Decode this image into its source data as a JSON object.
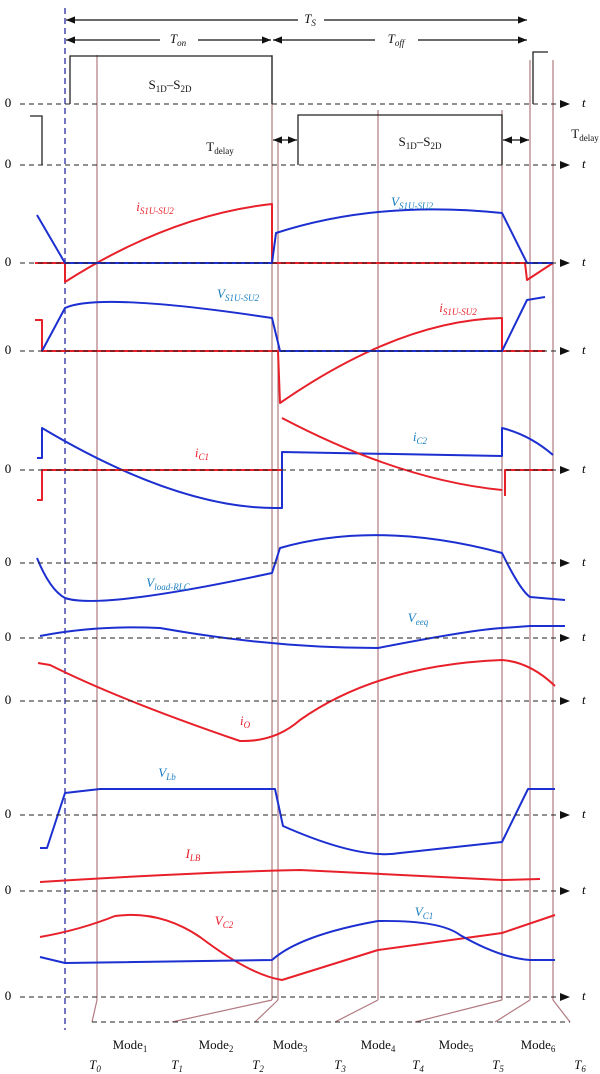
{
  "labels": [
    {
      "parts": [
        [
          "T",
          "S"
        ]
      ]
    },
    {
      "parts": [
        [
          "T",
          "on"
        ]
      ]
    },
    {
      "parts": [
        [
          "T",
          "off"
        ]
      ]
    },
    {
      "parts": [
        [
          "S",
          "1D"
        ],
        [
          "–S",
          "2D"
        ]
      ]
    },
    {
      "parts": [
        [
          "T",
          "delay"
        ]
      ]
    },
    {
      "parts": [
        [
          "S",
          "1D"
        ],
        [
          "–S",
          "2D"
        ]
      ]
    },
    {
      "parts": [
        [
          "T",
          "delay"
        ]
      ]
    },
    {
      "parts": [
        [
          "i",
          "S1U-SU2"
        ]
      ]
    },
    {
      "parts": [
        [
          "V",
          "S1U-SU2"
        ]
      ]
    },
    {
      "parts": [
        [
          "V",
          "S1U-SU2"
        ]
      ]
    },
    {
      "parts": [
        [
          "i",
          "S1U-SU2"
        ]
      ]
    },
    {
      "parts": [
        [
          "i",
          "C1"
        ]
      ]
    },
    {
      "parts": [
        [
          "i",
          "C2"
        ]
      ]
    },
    {
      "parts": [
        [
          "V",
          "load-RLC"
        ]
      ]
    },
    {
      "parts": [
        [
          "V",
          "eeq"
        ]
      ]
    },
    {
      "parts": [
        [
          "i",
          "O"
        ]
      ]
    },
    {
      "parts": [
        [
          "V",
          "Lb"
        ]
      ]
    },
    {
      "parts": [
        [
          "I",
          "LB"
        ]
      ]
    },
    {
      "parts": [
        [
          "V",
          "C2"
        ]
      ]
    },
    {
      "parts": [
        [
          "V",
          "C1"
        ]
      ]
    }
  ],
  "axes": [
    {
      "zero": "0",
      "t": "t"
    },
    {
      "zero": "0",
      "t": "t"
    },
    {
      "zero": "0",
      "t": "t"
    },
    {
      "zero": "0",
      "t": "t"
    },
    {
      "zero": "0",
      "t": "t"
    },
    {
      "zero": "0",
      "t": "t"
    },
    {
      "zero": "0",
      "t": "t"
    },
    {
      "zero": "0",
      "t": "t"
    },
    {
      "zero": "0",
      "t": "t"
    },
    {
      "zero": "0",
      "t": "t"
    },
    {
      "zero": "0",
      "t": "t"
    }
  ],
  "modes": [
    [
      "Mode",
      "1"
    ],
    [
      "Mode",
      "2"
    ],
    [
      "Mode",
      "3"
    ],
    [
      "Mode",
      "4"
    ],
    [
      "Mode",
      "5"
    ],
    [
      "Mode",
      "6"
    ]
  ],
  "time_points": [
    [
      "T",
      "0"
    ],
    [
      "T",
      "1"
    ],
    [
      "T",
      "2"
    ],
    [
      "T",
      "3"
    ],
    [
      "T",
      "4"
    ],
    [
      "T",
      "5"
    ],
    [
      "T",
      "6"
    ]
  ]
}
